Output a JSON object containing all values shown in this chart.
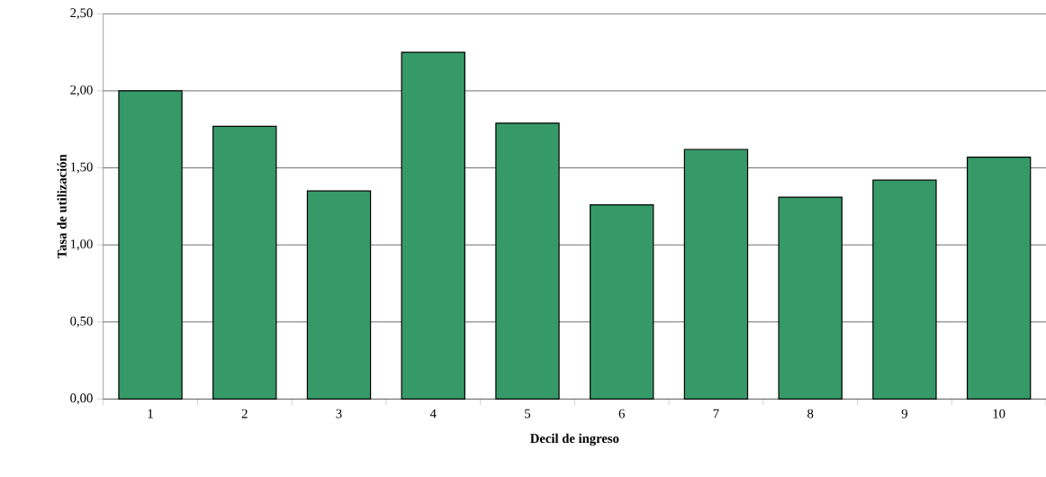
{
  "chart_data": {
    "type": "bar",
    "xlabel": "Decil de ingreso",
    "ylabel": "Tasa de utilización",
    "categories": [
      "1",
      "2",
      "3",
      "4",
      "5",
      "6",
      "7",
      "8",
      "9",
      "10"
    ],
    "values": [
      2.0,
      1.77,
      1.35,
      2.25,
      1.79,
      1.26,
      1.62,
      1.31,
      1.42,
      1.57
    ],
    "color": "#369a68",
    "ylim": [
      0,
      2.5
    ],
    "yticks": [
      {
        "value": 0,
        "label": "0,00"
      },
      {
        "value": 0.5,
        "label": "0,50"
      },
      {
        "value": 1,
        "label": "1,00"
      },
      {
        "value": 1.5,
        "label": "1,50"
      },
      {
        "value": 2,
        "label": "2,00"
      },
      {
        "value": 2.5,
        "label": "2,50"
      }
    ],
    "grid": "y"
  }
}
